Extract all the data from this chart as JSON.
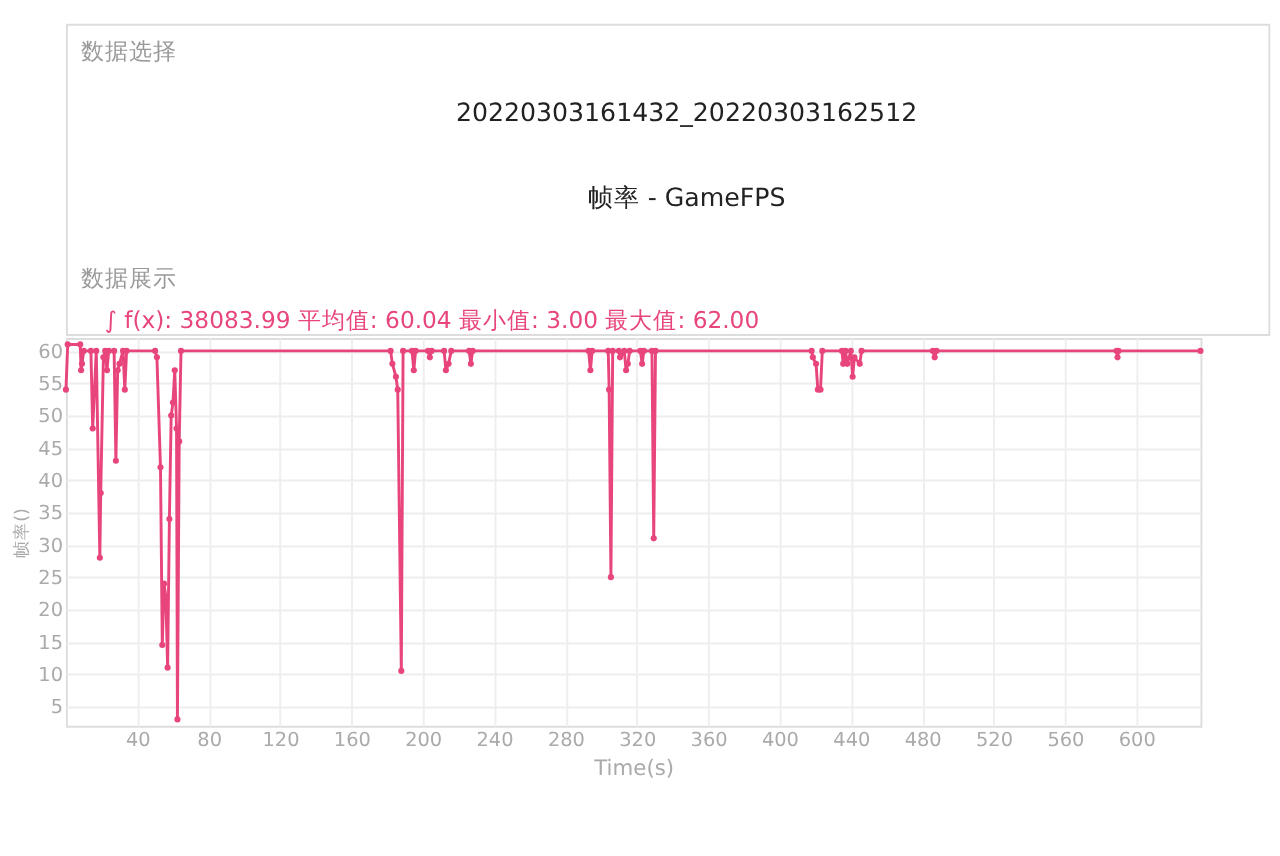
{
  "chart_data": {
    "type": "line",
    "subtitle": "∫ f(x): 38083.99 平均值: 60.04 最小值: 3.00 最大值: 62.00",
    "annotations": [
      "数据选择",
      "20220303161432_20220303162512",
      "帧率 - GameFPS",
      "数据展示"
    ],
    "xlabel": "Time(s)",
    "ylabel": "帧率()",
    "x": [
      0,
      1,
      8,
      8.5,
      9,
      10,
      14,
      15,
      17,
      19,
      19.5,
      21,
      22,
      23,
      24,
      27,
      28,
      29,
      30,
      32,
      33,
      34,
      50,
      51,
      53,
      54,
      55,
      56,
      57,
      58,
      59,
      60,
      61,
      62,
      62.5,
      63.5,
      64.5,
      182,
      183,
      185,
      186,
      188,
      189,
      194,
      195,
      196,
      203,
      204,
      205,
      212,
      213,
      214.5,
      216,
      226,
      227,
      228,
      293,
      294,
      295,
      304,
      304.5,
      305.5,
      306.5,
      310,
      310.6,
      313,
      314,
      315,
      316,
      322,
      323,
      324,
      328.5,
      329.5,
      330.5,
      418,
      418.7,
      420.5,
      421.5,
      423,
      424,
      435,
      435.7,
      437,
      438,
      440,
      441,
      442,
      445,
      446,
      486,
      487,
      488,
      589,
      589.5,
      590,
      636
    ],
    "series": [
      {
        "color": "#e8457c",
        "values": [
          54,
          61,
          61,
          57,
          58,
          60,
          60,
          48,
          60,
          28,
          38,
          59,
          60,
          57,
          60,
          60,
          43,
          57,
          58,
          60,
          54,
          60,
          60,
          59,
          42,
          14.5,
          24,
          22,
          11,
          34,
          50,
          52,
          57,
          48,
          3,
          46,
          60,
          60,
          58,
          56,
          54,
          10.5,
          60,
          60,
          57,
          60,
          60,
          59,
          60,
          60,
          57,
          58,
          60,
          60,
          58,
          60,
          60,
          57,
          60,
          60,
          54,
          25,
          60,
          60,
          59,
          60,
          57,
          58,
          60,
          60,
          58,
          60,
          60,
          31,
          60,
          60,
          59,
          58,
          54,
          54,
          60,
          60,
          58,
          60,
          58,
          60,
          56,
          59,
          58,
          60,
          60,
          59,
          60,
          60,
          59,
          60,
          60
        ]
      }
    ],
    "xlim": [
      0,
      636
    ],
    "xticks": [
      40,
      80,
      120,
      160,
      200,
      240,
      280,
      320,
      360,
      400,
      440,
      480,
      520,
      560,
      600
    ],
    "ylim": [
      2,
      62
    ],
    "yticks": [
      5,
      10,
      15,
      20,
      25,
      30,
      35,
      40,
      45,
      50,
      55,
      60
    ],
    "grid": true,
    "marker": "circle",
    "line_style": "solid"
  }
}
